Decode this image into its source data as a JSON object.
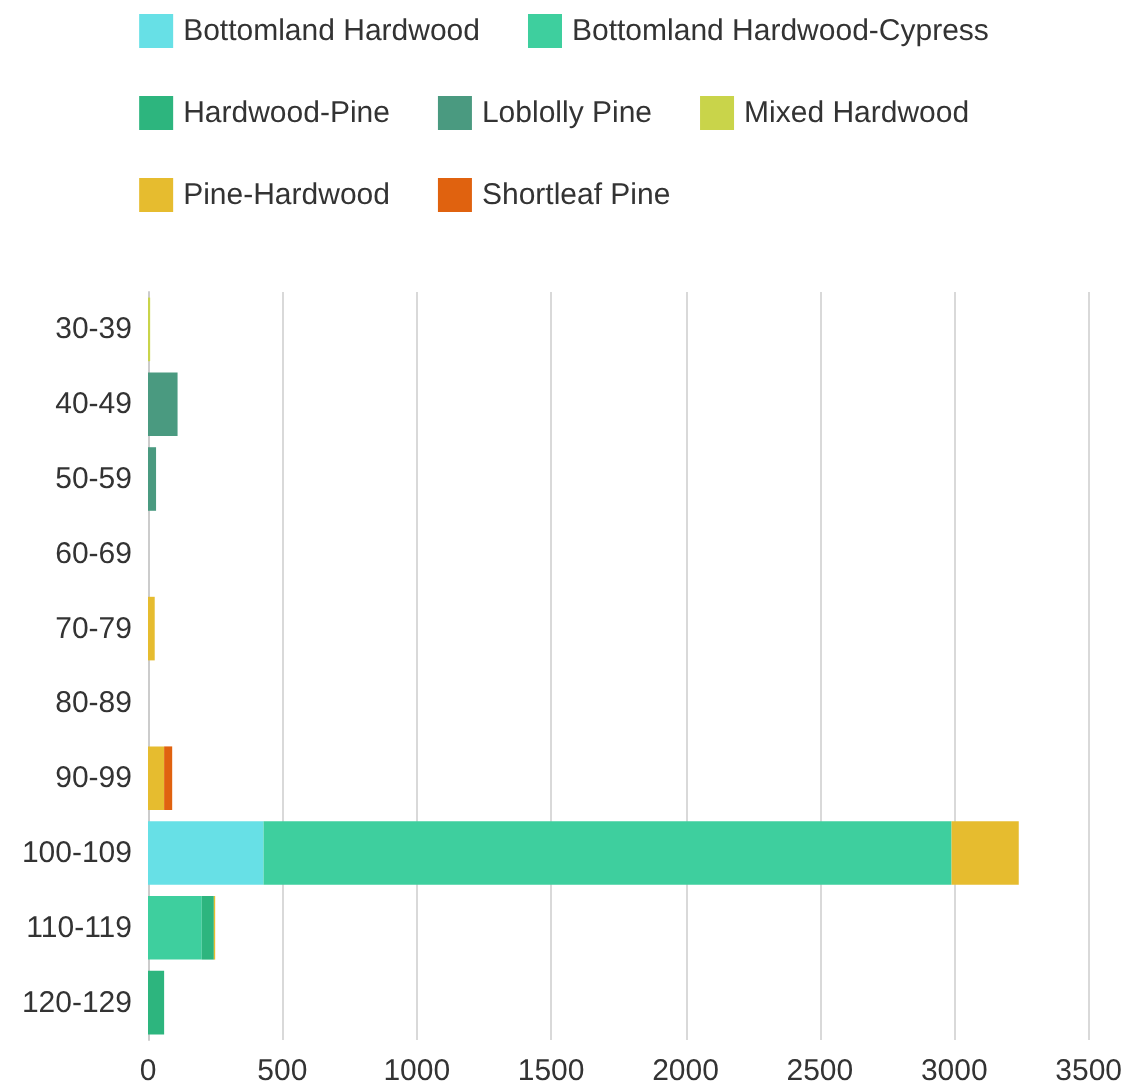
{
  "chart_data": {
    "type": "bar",
    "orientation": "horizontal",
    "stacked": true,
    "legend": "top",
    "grid": "x",
    "categories": [
      "30-39",
      "40-49",
      "50-59",
      "60-69",
      "70-79",
      "80-89",
      "90-99",
      "100-109",
      "110-119",
      "120-129"
    ],
    "xlim": [
      0,
      3500
    ],
    "xticks": [
      0,
      500,
      1000,
      1500,
      2000,
      2500,
      3000,
      3500
    ],
    "series": [
      {
        "name": "Bottomland Hardwood",
        "color": "#67e0e6",
        "values": [
          null,
          null,
          null,
          null,
          null,
          null,
          null,
          430,
          null,
          null
        ]
      },
      {
        "name": "Bottomland Hardwood-Cypress",
        "color": "#3ecf9e",
        "values": [
          null,
          null,
          null,
          null,
          null,
          null,
          null,
          2560,
          200,
          null
        ]
      },
      {
        "name": "Hardwood-Pine",
        "color": "#2db57e",
        "values": [
          null,
          null,
          null,
          null,
          null,
          null,
          null,
          null,
          45,
          60
        ]
      },
      {
        "name": "Loblolly Pine",
        "color": "#4a9a80",
        "values": [
          null,
          110,
          30,
          null,
          null,
          null,
          null,
          null,
          null,
          null
        ]
      },
      {
        "name": "Mixed Hardwood",
        "color": "#c9d44a",
        "values": [
          8,
          null,
          null,
          null,
          null,
          null,
          null,
          null,
          null,
          null
        ]
      },
      {
        "name": "Pine-Hardwood",
        "color": "#e6bc2f",
        "values": [
          null,
          null,
          null,
          null,
          25,
          null,
          60,
          250,
          5,
          null
        ]
      },
      {
        "name": "Shortleaf Pine",
        "color": "#e0620f",
        "values": [
          null,
          null,
          null,
          null,
          null,
          null,
          30,
          null,
          null,
          null
        ]
      }
    ]
  }
}
